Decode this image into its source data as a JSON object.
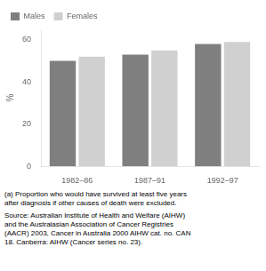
{
  "chart_data": {
    "type": "bar",
    "categories": [
      "1982–86",
      "1987–91",
      "1992–97"
    ],
    "series": [
      {
        "name": "Males",
        "color": "#7f7f7f",
        "values": [
          50,
          53,
          58
        ]
      },
      {
        "name": "Females",
        "color": "#d0d0d0",
        "values": [
          52,
          55,
          59
        ]
      }
    ],
    "ylabel": "%",
    "ylim": [
      0,
      65
    ],
    "yticks": [
      0,
      20,
      40,
      60
    ],
    "grid": false,
    "legend": "upper left",
    "footnotes": [
      "(a) Proportion who would have survived at least five years",
      "after diagnosis if other causes of death were excluded."
    ],
    "annotations": [
      "Source: Australian Institute of Health and Welfare (AIHW)",
      "and the Australasian Association of Cancer Registries",
      "(AACR) 2003, Cancer in Australia 2000 AIHW cat. no. CAN",
      "18. Canberra: AIHW (Cancer series no. 23)."
    ]
  }
}
